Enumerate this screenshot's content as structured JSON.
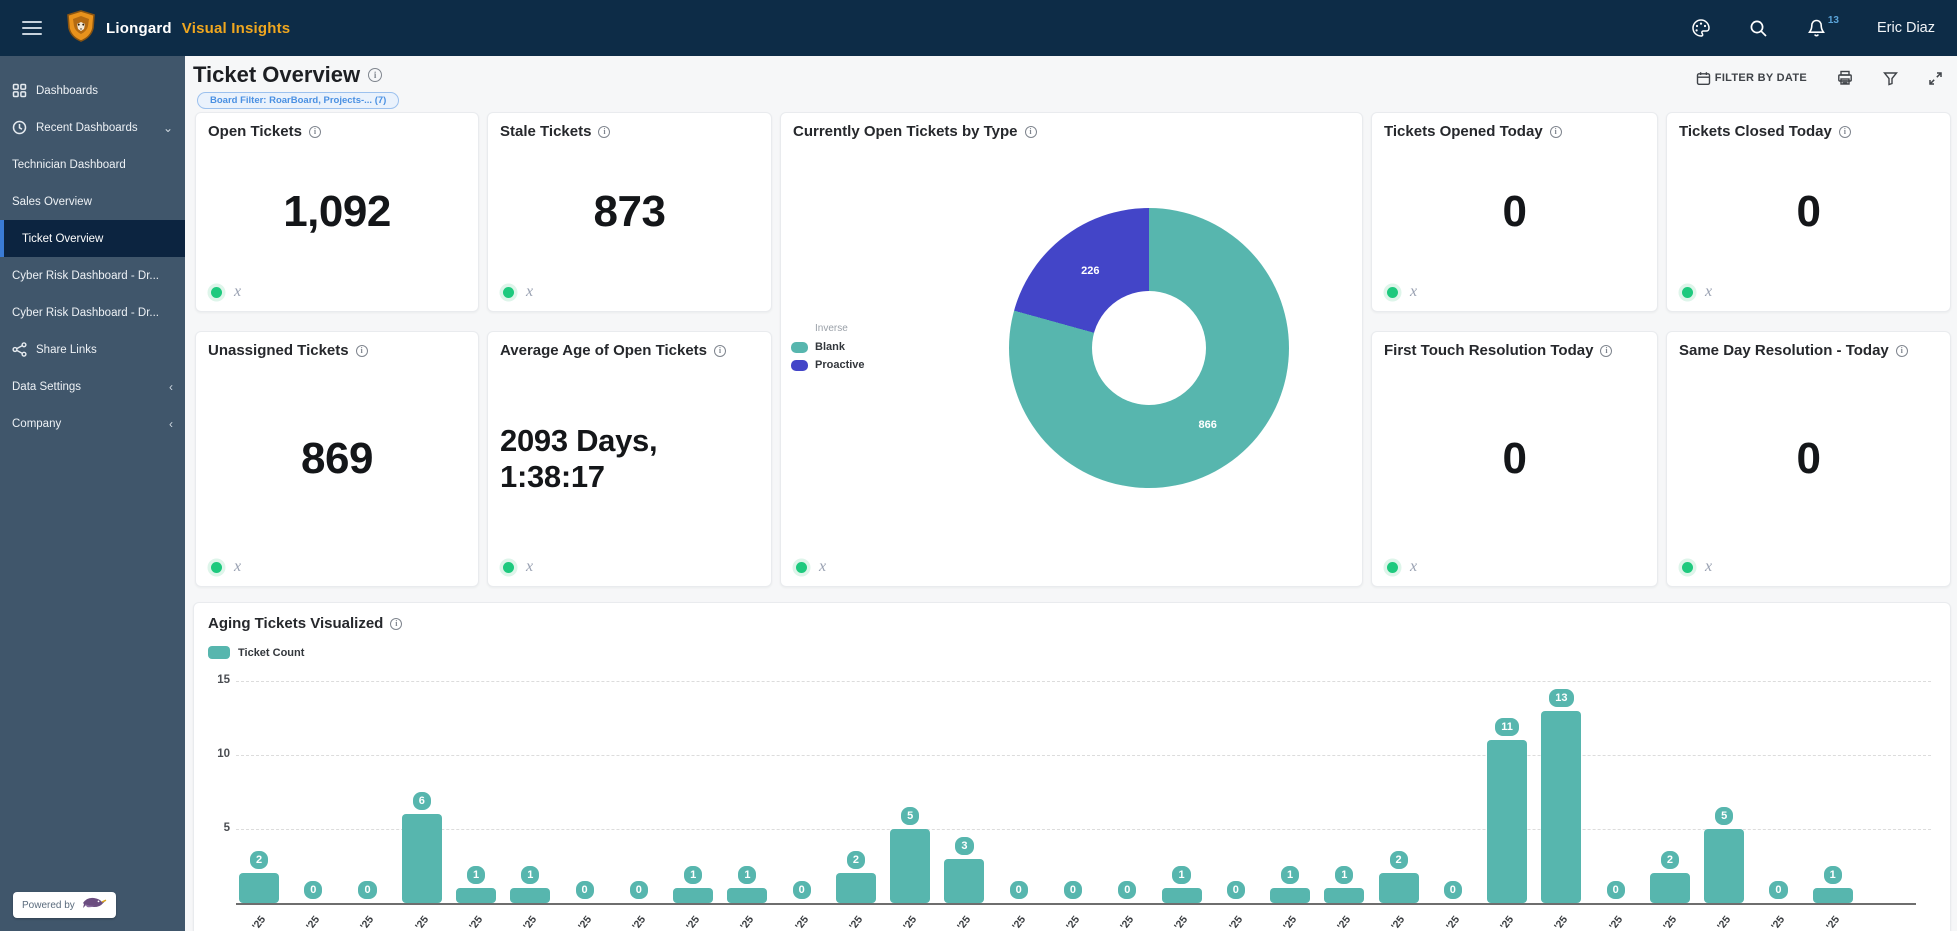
{
  "topbar": {
    "brand": "Liongard",
    "product": "Visual Insights",
    "notification_count": "13",
    "user": "Eric Diaz"
  },
  "sidebar": {
    "items": [
      {
        "label": "Dashboards",
        "icon": "grid"
      },
      {
        "label": "Recent Dashboards",
        "icon": "clock",
        "trailing": "chevron-down"
      },
      {
        "label": "Technician Dashboard"
      },
      {
        "label": "Sales Overview"
      },
      {
        "label": "Ticket Overview",
        "active": true
      },
      {
        "label": "Cyber Risk Dashboard - Dr..."
      },
      {
        "label": "Cyber Risk Dashboard - Dr..."
      },
      {
        "label": "Share Links",
        "icon": "share"
      },
      {
        "label": "Data Settings",
        "trailing": "chevron-left"
      },
      {
        "label": "Company",
        "trailing": "chevron-left"
      }
    ],
    "powered_by": "Powered by"
  },
  "header": {
    "title": "Ticket Overview",
    "board_filter": "Board Filter: RoarBoard, Projects-... (7)",
    "filter_by_date": "FILTER BY DATE"
  },
  "cards": {
    "source_label": "x",
    "stats": [
      {
        "id": "open-tickets",
        "title": "Open Tickets",
        "value": "1,092",
        "col": 1,
        "row": 1
      },
      {
        "id": "stale-tickets",
        "title": "Stale Tickets",
        "value": "873",
        "col": 2,
        "row": 1
      },
      {
        "id": "tickets-opened-today",
        "title": "Tickets Opened Today",
        "value": "0",
        "col": 4,
        "row": 1
      },
      {
        "id": "tickets-closed-today",
        "title": "Tickets Closed Today",
        "value": "0",
        "col": 5,
        "row": 1
      },
      {
        "id": "unassigned-tickets",
        "title": "Unassigned Tickets",
        "value": "869",
        "col": 1,
        "row": 2
      },
      {
        "id": "average-age",
        "title": "Average Age of Open Tickets",
        "value": "2093 Days, 1:38:17",
        "col": 2,
        "row": 2,
        "small": true
      },
      {
        "id": "first-touch",
        "title": "First Touch Resolution Today",
        "value": "0",
        "col": 4,
        "row": 2
      },
      {
        "id": "same-day",
        "title": "Same Day Resolution - Today",
        "value": "0",
        "col": 5,
        "row": 2
      }
    ]
  },
  "chart_data": [
    {
      "type": "pie",
      "donut": true,
      "title": "Currently Open Tickets by Type",
      "legend_title": "Inverse",
      "legend_position": "left",
      "labels_on_slices": true,
      "slices": [
        {
          "label": "Blank",
          "value": 866,
          "color": "#57b6ae"
        },
        {
          "label": "Proactive",
          "value": 226,
          "color": "#4345c8"
        }
      ]
    },
    {
      "type": "bar",
      "title": "Aging Tickets Visualized",
      "legend": [
        "Ticket Count"
      ],
      "color": "#57b6ae",
      "categories": [
        "'25",
        "'25",
        "'25",
        "'25",
        "'25",
        "'25",
        "'25",
        "'25",
        "'25",
        "'25",
        "'25",
        "'25",
        "'25",
        "'25",
        "'25",
        "'25",
        "'25",
        "'25",
        "'25",
        "'25",
        "'25",
        "'25",
        "'25",
        "'25",
        "'25",
        "'25",
        "'25",
        "'25",
        "'25",
        "'25"
      ],
      "values": [
        2,
        0,
        0,
        6,
        1,
        1,
        0,
        0,
        1,
        1,
        0,
        2,
        5,
        3,
        0,
        0,
        0,
        1,
        0,
        1,
        1,
        2,
        0,
        11,
        13,
        0,
        2,
        5,
        0,
        1
      ],
      "ylim": [
        0,
        15
      ],
      "yticks": [
        5,
        10,
        15
      ],
      "grid": "dashed",
      "bar_value_labels": true
    }
  ]
}
